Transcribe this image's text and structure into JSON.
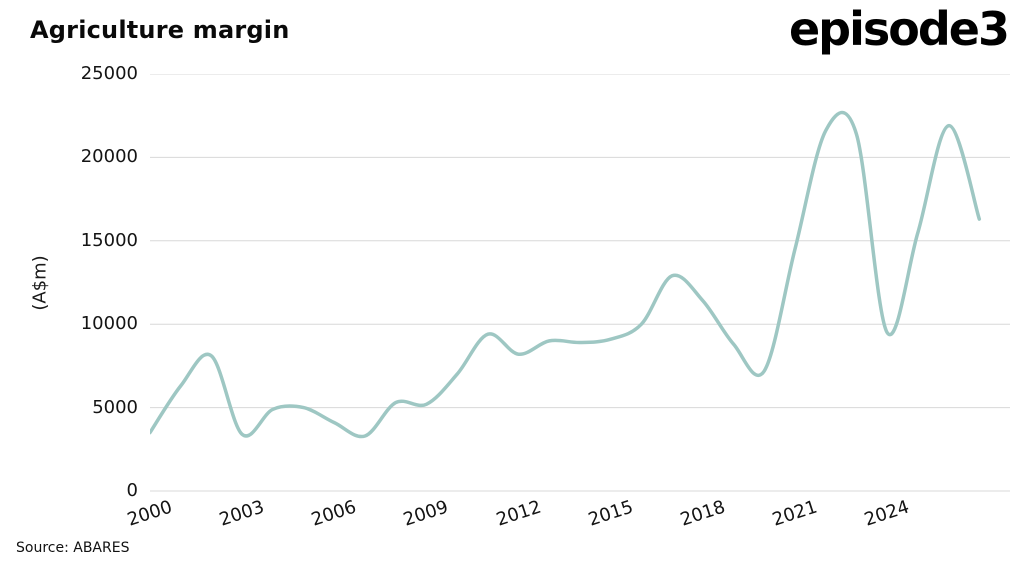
{
  "header": {
    "title": "Agriculture margin",
    "logo": "episode3"
  },
  "footer": {
    "source": "Source: ABARES"
  },
  "chart_data": {
    "type": "line",
    "title": "Agriculture margin",
    "ylabel": "(A$m)",
    "xlabel": "",
    "source": "Source: ABARES",
    "x": [
      2000,
      2001,
      2002,
      2003,
      2004,
      2005,
      2006,
      2007,
      2008,
      2009,
      2010,
      2011,
      2012,
      2013,
      2014,
      2015,
      2016,
      2017,
      2018,
      2019,
      2020,
      2021,
      2022,
      2023,
      2024,
      2025,
      2026,
      2027
    ],
    "values": [
      3500,
      6300,
      8100,
      3400,
      4900,
      5000,
      4100,
      3300,
      5300,
      5200,
      7000,
      9400,
      8200,
      9000,
      8900,
      9100,
      10000,
      12900,
      11400,
      8800,
      7200,
      14500,
      21600,
      21400,
      9500,
      15500,
      21900,
      16300
    ],
    "x_ticks": [
      2000,
      2003,
      2006,
      2009,
      2012,
      2015,
      2018,
      2021,
      2024
    ],
    "y_ticks": [
      0,
      5000,
      10000,
      15000,
      20000,
      25000
    ],
    "xlim": [
      2000,
      2028
    ],
    "ylim": [
      0,
      25000
    ],
    "grid": true,
    "legend_position": "none",
    "line_color": "#9ec7c3",
    "grid_color": "#d8d8d8",
    "text_color": "#141414"
  }
}
